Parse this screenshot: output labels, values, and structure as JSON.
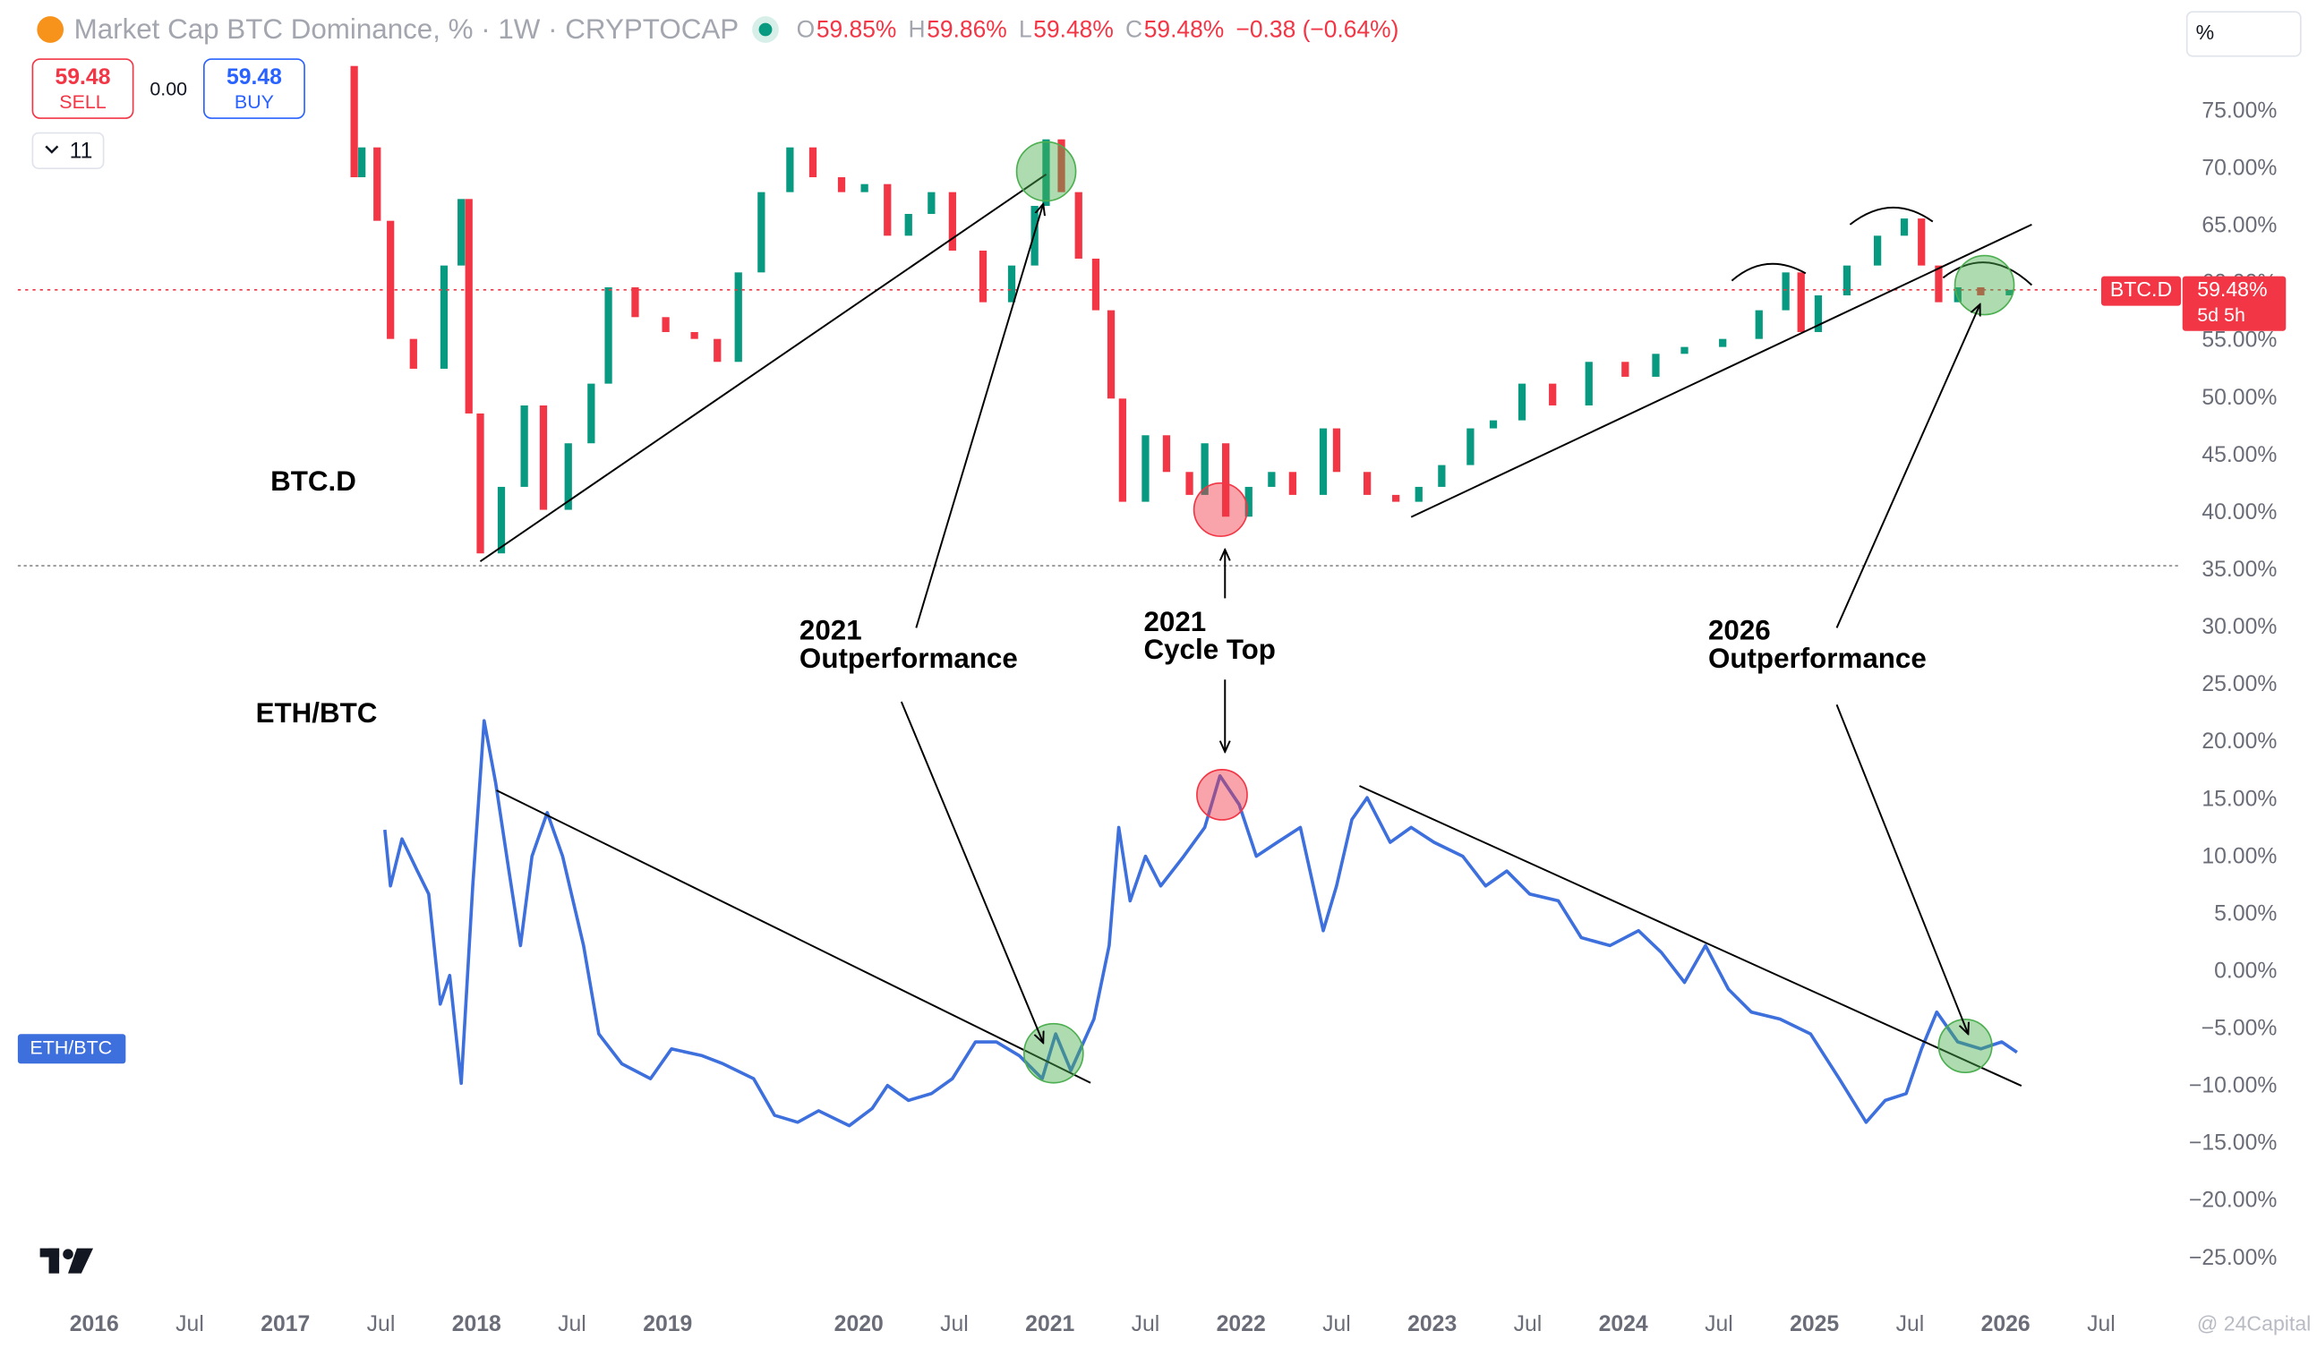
{
  "header": {
    "title": "Market Cap BTC Dominance, % · 1W · CRYPTOCAP",
    "ohlc": [
      {
        "label": "O",
        "value": "59.85%"
      },
      {
        "label": "H",
        "value": "59.86%"
      },
      {
        "label": "L",
        "value": "59.48%"
      },
      {
        "label": "C",
        "value": "59.48%"
      }
    ],
    "change": "−0.38 (−0.64%)",
    "sell": {
      "price": "59.48",
      "label": "SELL"
    },
    "spread": "0.00",
    "buy": {
      "price": "59.48",
      "label": "BUY"
    },
    "indicators_count": "11",
    "scale_button": "%",
    "price_tag": {
      "value": "59.48%",
      "countdown": "5d 5h"
    },
    "watermark": "@ 24Capital"
  },
  "chart_data": {
    "type": "line",
    "grid": false,
    "xlim": [
      2015.6,
      2026.91
    ],
    "xticks": [
      {
        "value": 2016,
        "label": "2016"
      },
      {
        "value": 2016.5,
        "label": "Jul"
      },
      {
        "value": 2017,
        "label": "2017"
      },
      {
        "value": 2017.5,
        "label": "Jul"
      },
      {
        "value": 2018,
        "label": "2018"
      },
      {
        "value": 2018.5,
        "label": "Jul"
      },
      {
        "value": 2019,
        "label": "2019"
      },
      {
        "value": 2020,
        "label": "2020"
      },
      {
        "value": 2020.5,
        "label": "Jul"
      },
      {
        "value": 2021,
        "label": "2021"
      },
      {
        "value": 2021.5,
        "label": "Jul"
      },
      {
        "value": 2022,
        "label": "2022"
      },
      {
        "value": 2022.5,
        "label": "Jul"
      },
      {
        "value": 2023,
        "label": "2023"
      },
      {
        "value": 2023.5,
        "label": "Jul"
      },
      {
        "value": 2024,
        "label": "2024"
      },
      {
        "value": 2024.5,
        "label": "Jul"
      },
      {
        "value": 2025,
        "label": "2025"
      },
      {
        "value": 2025.5,
        "label": "Jul"
      },
      {
        "value": 2026,
        "label": "2026"
      },
      {
        "value": 2026.5,
        "label": "Jul"
      }
    ],
    "ylim": [
      -28.6,
      79.6
    ],
    "yticks": [
      {
        "value": 75,
        "label": "75.00%"
      },
      {
        "value": 70,
        "label": "70.00%"
      },
      {
        "value": 65,
        "label": "65.00%"
      },
      {
        "value": 60,
        "label": "60.00%"
      },
      {
        "value": 55,
        "label": "55.00%"
      },
      {
        "value": 50,
        "label": "50.00%"
      },
      {
        "value": 45,
        "label": "45.00%"
      },
      {
        "value": 40,
        "label": "40.00%"
      },
      {
        "value": 35,
        "label": "35.00%"
      },
      {
        "value": 30,
        "label": "30.00%"
      },
      {
        "value": 25,
        "label": "25.00%"
      },
      {
        "value": 20,
        "label": "20.00%"
      },
      {
        "value": 15,
        "label": "15.00%"
      },
      {
        "value": 10,
        "label": "10.00%"
      },
      {
        "value": 5,
        "label": "5.00%"
      },
      {
        "value": 0,
        "label": "0.00%"
      },
      {
        "value": -5,
        "label": "−5.00%"
      },
      {
        "value": -10,
        "label": "−10.00%"
      },
      {
        "value": -15,
        "label": "−15.00%"
      },
      {
        "value": -20,
        "label": "−20.00%"
      },
      {
        "value": -25,
        "label": "−25.00%"
      }
    ],
    "series": [
      {
        "name": "BTC.D",
        "style": "candles",
        "up_color": "#089981",
        "down_color": "#f23645",
        "x": [
          2017.3,
          2017.36,
          2017.4,
          2017.48,
          2017.55,
          2017.67,
          2017.83,
          2017.92,
          2017.96,
          2018.02,
          2018.13,
          2018.25,
          2018.35,
          2018.48,
          2018.6,
          2018.69,
          2018.83,
          2018.99,
          2019.14,
          2019.26,
          2019.37,
          2019.49,
          2019.64,
          2019.76,
          2019.91,
          2020.03,
          2020.15,
          2020.26,
          2020.38,
          2020.49,
          2020.65,
          2020.8,
          2020.92,
          2020.98,
          2021.06,
          2021.15,
          2021.24,
          2021.32,
          2021.38,
          2021.5,
          2021.61,
          2021.73,
          2021.81,
          2021.92,
          2022.04,
          2022.16,
          2022.27,
          2022.43,
          2022.5,
          2022.66,
          2022.81,
          2022.93,
          2023.05,
          2023.2,
          2023.32,
          2023.47,
          2023.63,
          2023.82,
          2024.01,
          2024.17,
          2024.32,
          2024.52,
          2024.71,
          2024.85,
          2024.93,
          2025.02,
          2025.17,
          2025.33,
          2025.47,
          2025.56,
          2025.65,
          2025.75,
          2025.87,
          2026.02
        ],
        "values": [
          79,
          69.3,
          71.9,
          65.5,
          55.2,
          52.6,
          61.6,
          67.4,
          48.7,
          36.5,
          42.3,
          49.4,
          40.3,
          46.1,
          51.3,
          59.7,
          57.1,
          55.8,
          55.2,
          53.2,
          61.0,
          68.0,
          71.9,
          69.3,
          68.0,
          68.7,
          64.2,
          66.1,
          68.0,
          62.9,
          58.4,
          61.6,
          66.8,
          72.6,
          68.0,
          62.2,
          57.7,
          50.0,
          41.0,
          46.8,
          43.6,
          41.6,
          46.1,
          39.7,
          42.3,
          43.6,
          41.6,
          47.4,
          43.6,
          41.6,
          41.0,
          42.3,
          44.2,
          47.4,
          48.1,
          51.3,
          49.4,
          53.2,
          51.9,
          53.9,
          54.5,
          55.2,
          57.7,
          61.0,
          55.8,
          59.0,
          61.6,
          64.2,
          65.7,
          61.6,
          58.4,
          59.7,
          59.0,
          59.48
        ]
      },
      {
        "name": "ETH/BTC",
        "color": "#3d6fdd",
        "x": [
          2017.52,
          2017.55,
          2017.61,
          2017.69,
          2017.75,
          2017.81,
          2017.86,
          2017.92,
          2017.98,
          2018.04,
          2018.1,
          2018.17,
          2018.23,
          2018.29,
          2018.37,
          2018.45,
          2018.56,
          2018.64,
          2018.76,
          2018.91,
          2019.02,
          2019.18,
          2019.29,
          2019.45,
          2019.56,
          2019.68,
          2019.79,
          2019.95,
          2020.07,
          2020.15,
          2020.26,
          2020.38,
          2020.49,
          2020.61,
          2020.72,
          2020.84,
          2020.96,
          2021.03,
          2021.11,
          2021.23,
          2021.31,
          2021.36,
          2021.42,
          2021.5,
          2021.58,
          2021.7,
          2021.81,
          2021.89,
          2021.99,
          2022.08,
          2022.19,
          2022.31,
          2022.43,
          2022.5,
          2022.58,
          2022.66,
          2022.78,
          2022.89,
          2023.01,
          2023.16,
          2023.28,
          2023.39,
          2023.51,
          2023.66,
          2023.78,
          2023.93,
          2024.08,
          2024.2,
          2024.32,
          2024.43,
          2024.55,
          2024.67,
          2024.82,
          2024.98,
          2025.13,
          2025.27,
          2025.37,
          2025.48,
          2025.56,
          2025.64,
          2025.75,
          2025.87,
          2025.98,
          2026.06
        ],
        "values": [
          12.4,
          7.5,
          11.6,
          8.8,
          6.8,
          -2.8,
          -0.3,
          -9.7,
          7.5,
          21.9,
          16.5,
          8.8,
          2.3,
          10.1,
          13.9,
          10.1,
          2.3,
          -5.4,
          -8.0,
          -9.3,
          -6.7,
          -7.3,
          -8.0,
          -9.3,
          -12.5,
          -13.1,
          -12.1,
          -13.4,
          -11.9,
          -9.9,
          -11.2,
          -10.6,
          -9.3,
          -6.1,
          -6.1,
          -7.3,
          -9.3,
          -5.4,
          -8.6,
          -4.1,
          2.3,
          12.6,
          6.2,
          10.1,
          7.5,
          10.1,
          12.6,
          17.1,
          14.6,
          10.1,
          11.3,
          12.6,
          3.6,
          7.5,
          13.3,
          15.2,
          11.3,
          12.6,
          11.3,
          10.1,
          7.5,
          8.8,
          6.8,
          6.2,
          3.0,
          2.3,
          3.6,
          1.7,
          -0.9,
          2.3,
          -1.5,
          -3.5,
          -4.1,
          -5.4,
          -9.3,
          -13.1,
          -11.2,
          -10.6,
          -6.7,
          -3.5,
          -6.1,
          -6.7,
          -6.1,
          -7.0
        ]
      }
    ],
    "annotations": [
      {
        "text": "BTC.D"
      },
      {
        "text": "ETH/BTC"
      },
      {
        "year": "2021",
        "text": "Outperformance"
      },
      {
        "year": "2021",
        "text": "Cycle Top"
      },
      {
        "year": "2026",
        "text": "Outperformance"
      }
    ]
  }
}
